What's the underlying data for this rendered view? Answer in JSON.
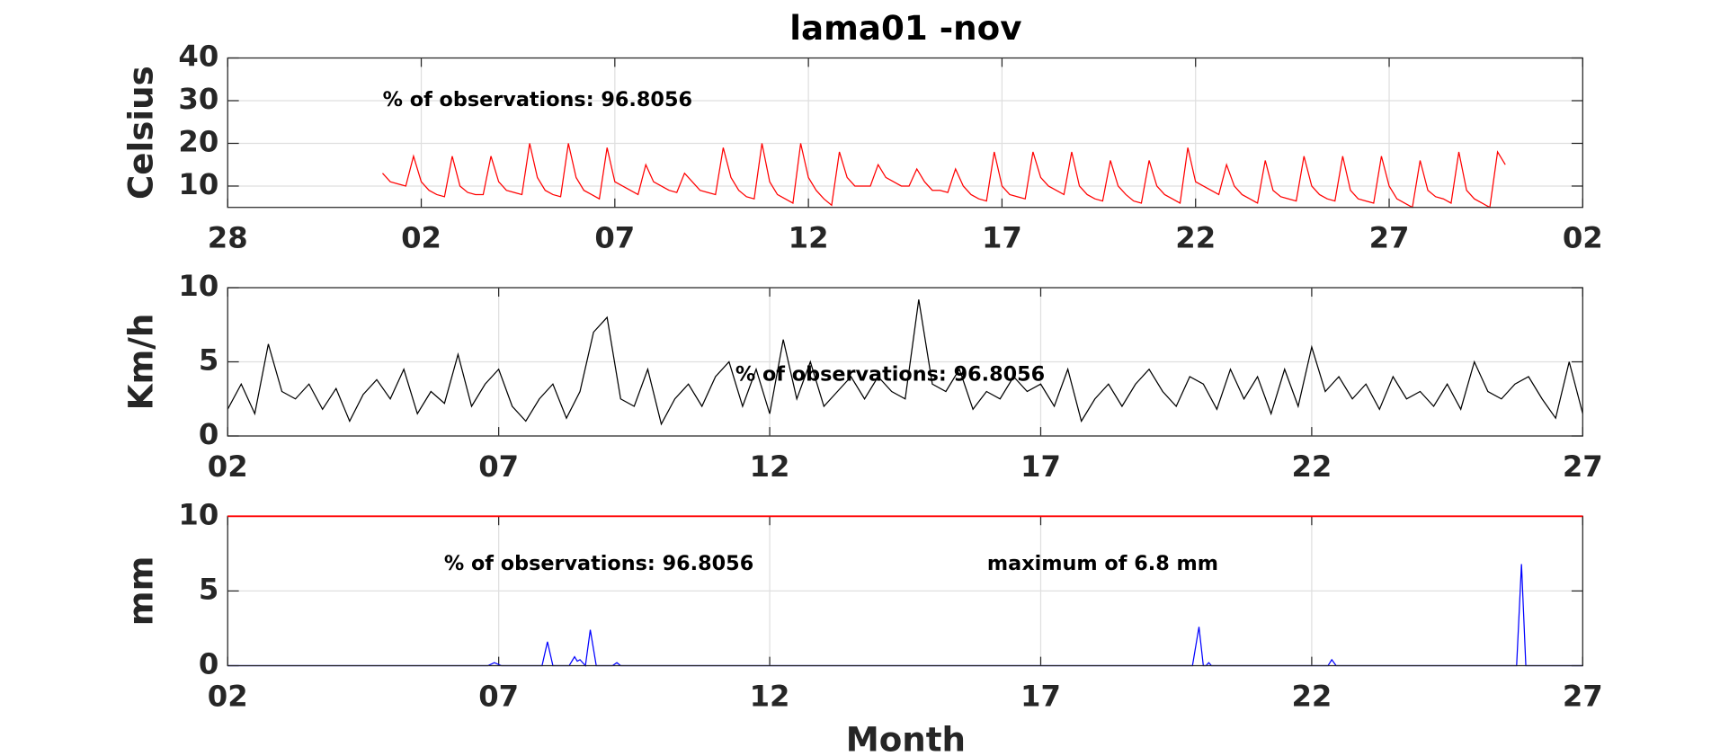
{
  "chart_data": [
    {
      "type": "line",
      "title": "lama01 -nov",
      "ylabel": "Celsius",
      "annotations": [
        "% of observations: 96.8056"
      ],
      "xlim": [
        -3,
        32
      ],
      "xticks": [
        {
          "value": -3,
          "label": "28"
        },
        {
          "value": 2,
          "label": "02"
        },
        {
          "value": 7,
          "label": "07"
        },
        12,
        17,
        22,
        27,
        {
          "value": 32,
          "label": "02"
        }
      ],
      "ylim": [
        5,
        40
      ],
      "yticks": [
        10,
        20,
        30,
        40
      ],
      "grid": true,
      "x": [
        1,
        1.2,
        1.4,
        1.6,
        1.8,
        2,
        2.2,
        2.4,
        2.6,
        2.8,
        3,
        3.2,
        3.4,
        3.6,
        3.8,
        4,
        4.2,
        4.4,
        4.6,
        4.8,
        5,
        5.2,
        5.4,
        5.6,
        5.8,
        6,
        6.2,
        6.4,
        6.6,
        6.8,
        7,
        7.2,
        7.4,
        7.6,
        7.8,
        8,
        8.2,
        8.4,
        8.6,
        8.8,
        9,
        9.2,
        9.4,
        9.6,
        9.8,
        10,
        10.2,
        10.4,
        10.6,
        10.8,
        11,
        11.2,
        11.4,
        11.6,
        11.8,
        12,
        12.2,
        12.4,
        12.6,
        12.8,
        13,
        13.2,
        13.4,
        13.6,
        13.8,
        14,
        14.2,
        14.4,
        14.6,
        14.8,
        15,
        15.2,
        15.4,
        15.6,
        15.8,
        16,
        16.2,
        16.4,
        16.6,
        16.8,
        17,
        17.2,
        17.4,
        17.6,
        17.8,
        18,
        18.2,
        18.4,
        18.6,
        18.8,
        19,
        19.2,
        19.4,
        19.6,
        19.8,
        20,
        20.2,
        20.4,
        20.6,
        20.8,
        21,
        21.2,
        21.4,
        21.6,
        21.8,
        22,
        22.2,
        22.4,
        22.6,
        22.8,
        23,
        23.2,
        23.4,
        23.6,
        23.8,
        24,
        24.2,
        24.4,
        24.6,
        24.8,
        25,
        25.2,
        25.4,
        25.6,
        25.8,
        26,
        26.2,
        26.4,
        26.6,
        26.8,
        27,
        27.2,
        27.4,
        27.6,
        27.8,
        28,
        28.2,
        28.4,
        28.6,
        28.8,
        29,
        29.2,
        29.4,
        29.6,
        29.8,
        30
      ],
      "series": [
        {
          "color": "#ff0000",
          "values": [
            13,
            11,
            10.5,
            10,
            17,
            11,
            9,
            8,
            7.5,
            17,
            10,
            8.5,
            8,
            8,
            17,
            11,
            9,
            8.5,
            8,
            20,
            12,
            9,
            8,
            7.5,
            20,
            12,
            9,
            8,
            7,
            19,
            11,
            10,
            9,
            8,
            15,
            11,
            10,
            9,
            8.5,
            13,
            11,
            9,
            8.5,
            8,
            19,
            12,
            9,
            7.5,
            7,
            20,
            11,
            8,
            7,
            6,
            20,
            12,
            9,
            7,
            5.5,
            18,
            12,
            10,
            10,
            10,
            15,
            12,
            11,
            10,
            10,
            14,
            11,
            9,
            9,
            8.5,
            14,
            10,
            8,
            7,
            6.5,
            18,
            10,
            8,
            7.5,
            7,
            18,
            12,
            10,
            9,
            8,
            18,
            10,
            8,
            7,
            6.5,
            16,
            10,
            8,
            6.5,
            6,
            16,
            10,
            8,
            7,
            6,
            19,
            11,
            10,
            9,
            8,
            15,
            10,
            8,
            7,
            6,
            16,
            9,
            7.5,
            7,
            6.5,
            17,
            10,
            8,
            7,
            6.5,
            17,
            9,
            7,
            6.5,
            6,
            17,
            10,
            7,
            6,
            5,
            16,
            9,
            7.5,
            7,
            6,
            18,
            9,
            7,
            6,
            5,
            18,
            15
          ]
        }
      ]
    },
    {
      "type": "line",
      "ylabel": "Km/h",
      "annotations": [
        "% of observations: 96.8056"
      ],
      "xlim": [
        2,
        27
      ],
      "xticks": [
        {
          "value": 2,
          "label": "02"
        },
        {
          "value": 7,
          "label": "07"
        },
        12,
        17,
        22,
        27
      ],
      "ylim": [
        0,
        10
      ],
      "yticks": [
        0,
        5,
        10
      ],
      "grid": true,
      "x": [
        2,
        2.25,
        2.5,
        2.75,
        3,
        3.25,
        3.5,
        3.75,
        4,
        4.25,
        4.5,
        4.75,
        5,
        5.25,
        5.5,
        5.75,
        6,
        6.25,
        6.5,
        6.75,
        7,
        7.25,
        7.5,
        7.75,
        8,
        8.25,
        8.5,
        8.75,
        9,
        9.25,
        9.5,
        9.75,
        10,
        10.25,
        10.5,
        10.75,
        11,
        11.25,
        11.5,
        11.75,
        12,
        12.25,
        12.5,
        12.75,
        13,
        13.25,
        13.5,
        13.75,
        14,
        14.25,
        14.5,
        14.75,
        15,
        15.25,
        15.5,
        15.75,
        16,
        16.25,
        16.5,
        16.75,
        17,
        17.25,
        17.5,
        17.75,
        18,
        18.25,
        18.5,
        18.75,
        19,
        19.25,
        19.5,
        19.75,
        20,
        20.25,
        20.5,
        20.75,
        21,
        21.25,
        21.5,
        21.75,
        22,
        22.25,
        22.5,
        22.75,
        23,
        23.25,
        23.5,
        23.75,
        24,
        24.25,
        24.5,
        24.75,
        25,
        25.25,
        25.5,
        25.75,
        26,
        26.25,
        26.5,
        26.75,
        27
      ],
      "series": [
        {
          "color": "#000000",
          "values": [
            1.8,
            3.5,
            1.5,
            6.2,
            3.0,
            2.5,
            3.5,
            1.8,
            3.2,
            1.0,
            2.8,
            3.8,
            2.5,
            4.5,
            1.5,
            3.0,
            2.2,
            5.5,
            2.0,
            3.5,
            4.5,
            2.0,
            1.0,
            2.5,
            3.5,
            1.2,
            3.0,
            7.0,
            8.0,
            2.5,
            2.0,
            4.5,
            0.8,
            2.5,
            3.5,
            2.0,
            4.0,
            5.0,
            2.0,
            4.5,
            1.5,
            6.5,
            2.5,
            5.0,
            2.0,
            3.0,
            4.0,
            2.5,
            4.0,
            3.0,
            2.5,
            9.2,
            3.5,
            3.0,
            4.5,
            1.8,
            3.0,
            2.5,
            4.0,
            3.0,
            3.5,
            2.0,
            4.5,
            1.0,
            2.5,
            3.5,
            2.0,
            3.5,
            4.5,
            3.0,
            2.0,
            4.0,
            3.5,
            1.8,
            4.5,
            2.5,
            4.0,
            1.5,
            4.5,
            2.0,
            6.0,
            3.0,
            4.0,
            2.5,
            3.5,
            1.8,
            4.0,
            2.5,
            3.0,
            2.0,
            3.5,
            1.8,
            5.0,
            3.0,
            2.5,
            3.5,
            4.0,
            2.5,
            1.2,
            5.0,
            1.5
          ]
        }
      ]
    },
    {
      "type": "line",
      "ylabel": "mm",
      "xlabel": "Month",
      "annotations": [
        "% of observations: 96.8056",
        "maximum of 6.8 mm"
      ],
      "xlim": [
        2,
        27
      ],
      "xticks": [
        {
          "value": 2,
          "label": "02"
        },
        {
          "value": 7,
          "label": "07"
        },
        12,
        17,
        22,
        27
      ],
      "ylim": [
        0,
        10
      ],
      "yticks": [
        0,
        5,
        10
      ],
      "grid": true,
      "x": [
        2,
        6.8,
        6.92,
        7.05,
        7.8,
        7.9,
        8.0,
        8.3,
        8.4,
        8.45,
        8.5,
        8.6,
        8.69,
        8.8,
        9.1,
        9.18,
        9.25,
        19.8,
        19.92,
        20.0,
        20.05,
        20.1,
        20.15,
        22.3,
        22.37,
        22.45,
        25.78,
        25.87,
        25.95,
        27
      ],
      "series": [
        {
          "color": "#0000ff",
          "values": [
            0,
            0,
            0.2,
            0,
            0,
            1.6,
            0,
            0,
            0.6,
            0.3,
            0.4,
            0,
            2.4,
            0,
            0,
            0.2,
            0,
            0,
            2.6,
            0,
            0,
            0.2,
            0,
            0,
            0.4,
            0,
            0,
            6.8,
            0,
            0
          ]
        }
      ]
    }
  ]
}
